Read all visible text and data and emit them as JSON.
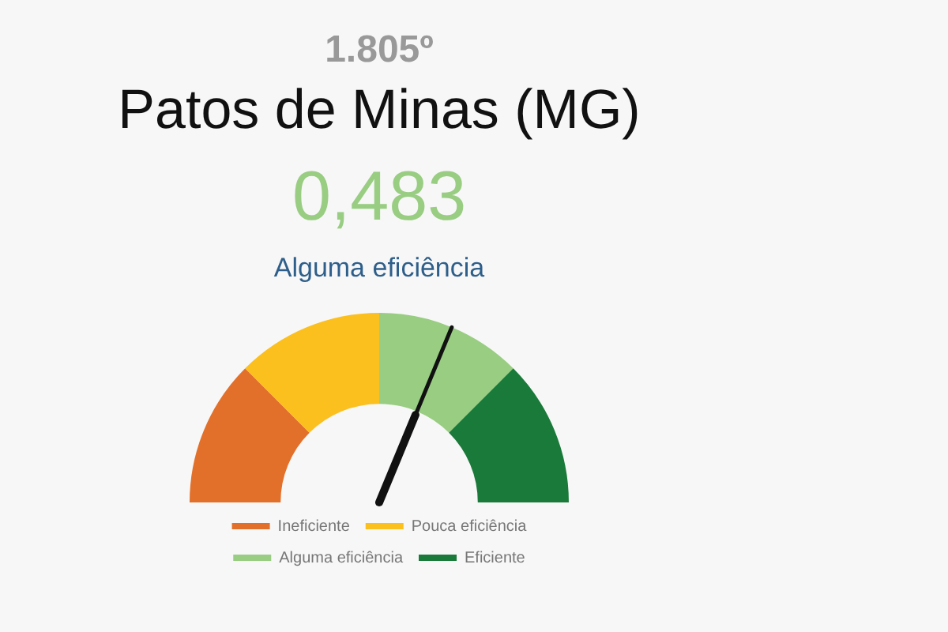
{
  "chart_data": {
    "type": "donut",
    "title": "Patos de Minas (MG)",
    "annotations": [
      "1.805º",
      "0,483",
      "Alguma eficiência"
    ],
    "categories": [
      "Ineficiente",
      "Pouca eficiência",
      "Alguma eficiência",
      "Eficiente"
    ],
    "values": [
      25,
      25,
      25,
      25
    ],
    "colors": [
      "#e2702b",
      "#fbbf1e",
      "#98cd82",
      "#1a7a3a"
    ],
    "needle": "Alguma eficiência",
    "legend": "bottom"
  }
}
